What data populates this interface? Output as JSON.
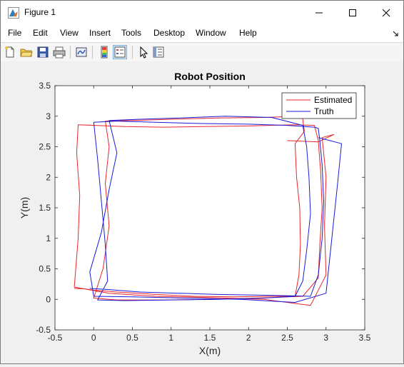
{
  "window": {
    "title": "Figure 1"
  },
  "menu": {
    "items": [
      "File",
      "Edit",
      "View",
      "Insert",
      "Tools",
      "Desktop",
      "Window",
      "Help"
    ]
  },
  "toolbar": {
    "icons": [
      "new-figure-icon",
      "open-file-icon",
      "save-icon",
      "print-icon",
      "link-plot-icon",
      "colorbar-icon",
      "legend-icon",
      "pointer-icon",
      "property-inspector-icon"
    ]
  },
  "colors": {
    "estimated": "#e8262b",
    "truth": "#1a1adc"
  },
  "chart_data": {
    "type": "line",
    "title": "Robot Position",
    "xlabel": "X(m)",
    "ylabel": "Y(m)",
    "xlim": [
      -0.5,
      3.5
    ],
    "ylim": [
      -0.5,
      3.5
    ],
    "xticks": [
      -0.5,
      0,
      0.5,
      1,
      1.5,
      2,
      2.5,
      3,
      3.5
    ],
    "yticks": [
      -0.5,
      0,
      0.5,
      1,
      1.5,
      2,
      2.5,
      3,
      3.5
    ],
    "xtick_labels": [
      "-0.5",
      "0",
      "0.5",
      "1",
      "1.5",
      "2",
      "2.5",
      "3",
      "3.5"
    ],
    "ytick_labels": [
      "-0.5",
      "0",
      "0.5",
      "1",
      "1.5",
      "2",
      "2.5",
      "3",
      "3.5"
    ],
    "grid": false,
    "legend_position": "top-right",
    "series": [
      {
        "name": "Estimated",
        "color": "#e8262b",
        "x": [
          -0.25,
          -0.1,
          0.0,
          0.3,
          0.8,
          1.3,
          1.8,
          2.3,
          2.6,
          2.65,
          2.67,
          2.66,
          2.62,
          2.6,
          2.72,
          2.7,
          2.68,
          2.6,
          2.2,
          1.6,
          1.0,
          0.5,
          0.15,
          0.2,
          0.15,
          0.2,
          0.12,
          0.0,
          0.3,
          0.9,
          1.5,
          2.1,
          2.7,
          2.9,
          2.92,
          2.95,
          2.93,
          2.9,
          2.85,
          2.6,
          2.0,
          1.4,
          0.9,
          0.4,
          -0.2,
          -0.22,
          -0.18,
          -0.2,
          -0.25,
          0.2,
          0.8,
          1.5,
          2.2,
          2.8,
          3.0,
          2.98,
          3.0,
          2.95,
          3.1,
          2.9,
          2.5
        ],
        "y": [
          0.18,
          0.17,
          0.15,
          0.12,
          0.08,
          0.05,
          0.04,
          0.05,
          0.05,
          0.4,
          0.9,
          1.5,
          2.0,
          2.55,
          2.75,
          2.95,
          3.02,
          3.0,
          2.98,
          2.97,
          2.95,
          2.93,
          2.92,
          2.5,
          1.9,
          1.2,
          0.5,
          0.02,
          -0.01,
          -0.01,
          0.0,
          0.02,
          0.05,
          0.35,
          0.9,
          1.5,
          2.1,
          2.6,
          2.85,
          2.86,
          2.84,
          2.83,
          2.82,
          2.83,
          2.86,
          2.4,
          1.7,
          1.0,
          0.2,
          0.1,
          0.05,
          0.03,
          0.0,
          -0.1,
          0.4,
          1.2,
          2.0,
          2.65,
          2.7,
          2.58,
          2.6
        ]
      },
      {
        "name": "Truth",
        "color": "#1a1adc",
        "x": [
          -0.05,
          0.2,
          0.6,
          1.1,
          1.6,
          2.1,
          2.5,
          2.8,
          2.9,
          2.95,
          2.97,
          2.95,
          2.92,
          2.9,
          2.85,
          2.5,
          2.0,
          1.4,
          0.8,
          0.3,
          0.0,
          0.05,
          0.1,
          0.15,
          0.18,
          0.05,
          0.4,
          1.0,
          1.6,
          2.2,
          2.6,
          2.7,
          2.75,
          2.8,
          2.78,
          2.75,
          2.7,
          2.3,
          1.7,
          1.1,
          0.6,
          0.2,
          0.3,
          0.2,
          0.1,
          -0.05,
          0.0,
          0.5,
          1.2,
          1.9,
          2.6,
          3.0,
          3.05,
          3.1,
          3.15,
          3.2,
          3.05,
          2.9
        ],
        "y": [
          0.18,
          0.16,
          0.12,
          0.1,
          0.08,
          0.07,
          0.06,
          0.05,
          0.4,
          1.0,
          1.6,
          2.2,
          2.6,
          2.8,
          2.82,
          2.85,
          2.87,
          2.88,
          2.9,
          2.92,
          2.9,
          2.3,
          1.6,
          0.9,
          0.3,
          -0.01,
          -0.02,
          -0.01,
          0.0,
          0.02,
          0.05,
          0.3,
          0.8,
          1.4,
          2.0,
          2.5,
          2.85,
          2.98,
          3.0,
          2.97,
          2.95,
          2.93,
          2.4,
          1.8,
          1.1,
          0.45,
          0.05,
          0.04,
          0.02,
          0.0,
          -0.05,
          0.1,
          0.7,
          1.3,
          1.9,
          2.55,
          2.6,
          2.65
        ]
      }
    ]
  }
}
